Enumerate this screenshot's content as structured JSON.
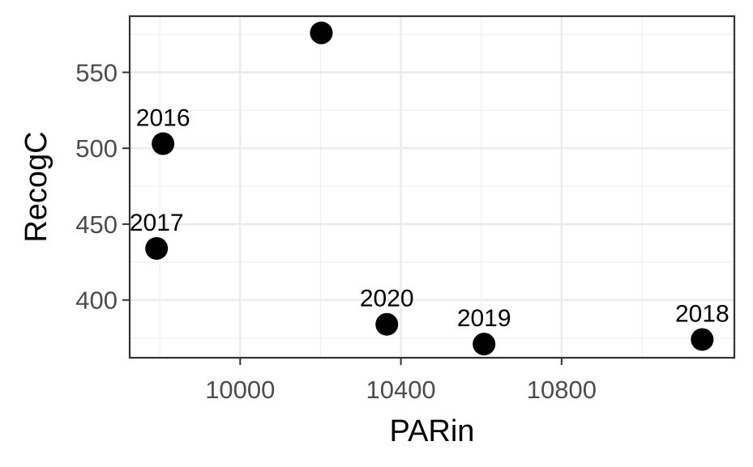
{
  "chart_data": {
    "type": "scatter",
    "title": "",
    "xlabel": "PARin",
    "ylabel": "RecogC",
    "xlim": [
      9725,
      11230
    ],
    "ylim": [
      362,
      587
    ],
    "x_ticks": [
      10000,
      10400,
      10800
    ],
    "y_ticks": [
      400,
      450,
      500,
      550
    ],
    "x_tick_labels": [
      "10000",
      "10400",
      "10800"
    ],
    "y_tick_labels": [
      "400",
      "450",
      "500",
      "550"
    ],
    "grid": true,
    "points": [
      {
        "x": 9808,
        "y": 503,
        "label": "2016"
      },
      {
        "x": 9792,
        "y": 434,
        "label": "2017"
      },
      {
        "x": 10202,
        "y": 576,
        "label": ""
      },
      {
        "x": 10365,
        "y": 384,
        "label": "2020"
      },
      {
        "x": 10607,
        "y": 371,
        "label": "2019"
      },
      {
        "x": 11150,
        "y": 374,
        "label": "2018"
      }
    ],
    "colors": {
      "point": "#000000",
      "panel_border": "#333333",
      "grid": "#ebebeb"
    }
  }
}
